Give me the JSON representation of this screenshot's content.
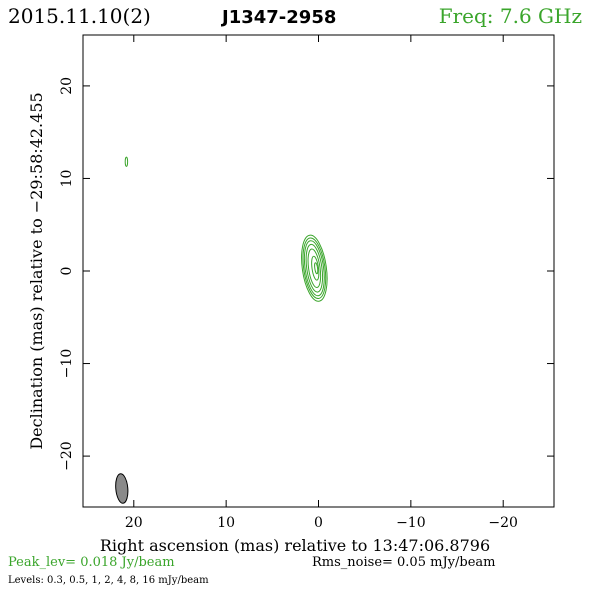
{
  "header": {
    "date": "2015.11.10(2)",
    "source": "J1347-2958",
    "freq": "Freq: 7.6 GHz"
  },
  "footer": {
    "peak": "Peak_lev=  0.018 Jy/beam",
    "rms": "Rms_noise= 0.05 mJy/beam",
    "levels": "Levels: 0.3, 0.5,   1,   2,   4,   8,   16 mJy/beam"
  },
  "colors": {
    "accent_green": "#3aa52b",
    "frame": "#000000",
    "beam_fill": "#8a8a8a"
  },
  "chart_data": {
    "type": "contour",
    "xlabel": "Right ascension (mas) relative to 13:47:06.8796",
    "ylabel": "Declination (mas) relative to −29:58:42.455",
    "xlim": [
      25.5,
      -25.5
    ],
    "ylim": [
      -25.5,
      25.5
    ],
    "x_ticks": [
      20,
      10,
      0,
      -10,
      -20
    ],
    "x_tick_labels": [
      "20",
      "10",
      "0",
      "−10",
      "−20"
    ],
    "y_ticks": [
      20,
      10,
      0,
      -10,
      -20
    ],
    "y_tick_labels": [
      "20",
      "10",
      "0",
      "−10",
      "−20"
    ],
    "contour_levels_mJy": [
      0.3,
      0.5,
      1,
      2,
      4,
      8,
      16
    ],
    "contours": [
      {
        "x": 0.45,
        "y": 0.3,
        "rx": 1.3,
        "ry": 3.6,
        "angle_deg": -8
      },
      {
        "x": 0.45,
        "y": 0.3,
        "rx": 1.15,
        "ry": 3.3,
        "angle_deg": -8
      },
      {
        "x": 0.45,
        "y": 0.3,
        "rx": 1.0,
        "ry": 3.0,
        "angle_deg": -8
      },
      {
        "x": 0.45,
        "y": 0.3,
        "rx": 0.82,
        "ry": 2.6,
        "angle_deg": -8
      },
      {
        "x": 0.45,
        "y": 0.3,
        "rx": 0.62,
        "ry": 2.1,
        "angle_deg": -8
      },
      {
        "x": 0.35,
        "y": 0.3,
        "rx": 0.35,
        "ry": 1.3,
        "angle_deg": -8
      },
      {
        "x": 0.25,
        "y": 0.3,
        "rx": 0.15,
        "ry": 0.6,
        "angle_deg": -8
      },
      {
        "x": 20.8,
        "y": 11.8,
        "rx": 0.13,
        "ry": 0.5,
        "angle_deg": 0
      }
    ],
    "beam": {
      "x": 21.3,
      "y": -23.5,
      "major_mas": 3.2,
      "minor_mas": 1.3,
      "pa_deg": -5
    }
  }
}
